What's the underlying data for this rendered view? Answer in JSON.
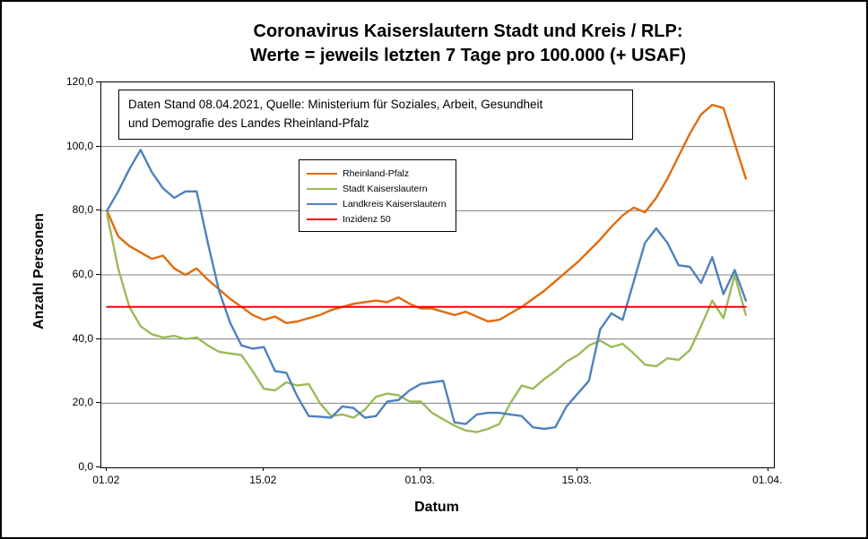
{
  "title": {
    "line1": "Coronavirus Kaiserslautern Stadt und Kreis / RLP:",
    "line2": "Werte = jeweils letzten 7 Tage pro 100.000 (+ USAF)"
  },
  "info_box": {
    "line1": "Daten Stand 08.04.2021, Quelle: Ministerium für Soziales, Arbeit, Gesundheit",
    "line2": "und Demografie des Landes Rheinland-Pfalz"
  },
  "chart_data": {
    "type": "line",
    "title": "Coronavirus Kaiserslautern Stadt und Kreis / RLP: Werte = jeweils letzten 7 Tage pro 100.000 (+ USAF)",
    "xlabel": "Datum",
    "ylabel": "Anzahl Personen",
    "ylim": [
      0,
      120
    ],
    "ytick_step": 20,
    "grid": "horizontal",
    "grid_color": "#808080",
    "legend_position": "upper-left-inside",
    "x_unit": "days since 01.02.2021",
    "x_domain": [
      0,
      59
    ],
    "yticks": [
      {
        "value": 0,
        "label": "0,0"
      },
      {
        "value": 20,
        "label": "20,0"
      },
      {
        "value": 40,
        "label": "40,0"
      },
      {
        "value": 60,
        "label": "60,0"
      },
      {
        "value": 80,
        "label": "80,0"
      },
      {
        "value": 100,
        "label": "100,0"
      },
      {
        "value": 120,
        "label": "120,0"
      }
    ],
    "xticks": [
      {
        "day": 0,
        "label": "01.02"
      },
      {
        "day": 14,
        "label": "15.02"
      },
      {
        "day": 28,
        "label": "01.03."
      },
      {
        "day": 42,
        "label": "15.03."
      },
      {
        "day": 59,
        "label": "01.04."
      }
    ],
    "series": [
      {
        "name": "Rheinland-Pfalz",
        "color": "#E26B0A",
        "stroke_width": 2.4,
        "values": [
          80,
          72,
          69,
          67,
          65,
          66,
          62,
          60,
          62,
          58.5,
          55.5,
          52.5,
          50,
          47.5,
          46,
          47,
          45,
          45.5,
          46.5,
          47.5,
          49,
          50,
          51,
          51.5,
          52,
          51.5,
          53,
          51,
          49.5,
          49.5,
          48.5,
          47.5,
          48.5,
          47,
          45.5,
          46,
          48,
          50,
          52.5,
          55,
          58,
          61,
          64,
          67.5,
          71,
          75,
          78.5,
          81,
          79.5,
          84,
          90,
          97,
          104,
          110,
          113,
          112,
          101,
          90
        ]
      },
      {
        "name": "Stadt Kaiserslautern",
        "color": "#9BBB59",
        "stroke_width": 2.4,
        "values": [
          79,
          62,
          50,
          44,
          41.5,
          40.5,
          41,
          40,
          40.5,
          38,
          36,
          35.5,
          35,
          30,
          24.5,
          24,
          26.5,
          25.5,
          26,
          20,
          16,
          16.5,
          15.5,
          18,
          22,
          23,
          22.5,
          20.5,
          20.5,
          17,
          15,
          13,
          11.5,
          11,
          12,
          13.5,
          20,
          25.5,
          24.5,
          27.5,
          30,
          33,
          35,
          38,
          39.5,
          37.5,
          38.5,
          35.5,
          32,
          31.5,
          34,
          33.5,
          36.5,
          44,
          52,
          46.5,
          60,
          47.5
        ]
      },
      {
        "name": "Landkreis Kaiserslautern",
        "color": "#4F81BD",
        "stroke_width": 2.4,
        "values": [
          80,
          86,
          93,
          99,
          92,
          87,
          84,
          86,
          86,
          70,
          55,
          45,
          38,
          37,
          37.5,
          30,
          29.5,
          22,
          16,
          15.8,
          15.5,
          19,
          18.5,
          15.5,
          16,
          20.5,
          21,
          24,
          26,
          26.5,
          27,
          14,
          13.5,
          16.5,
          17,
          17,
          16.5,
          16,
          12.5,
          12,
          12.5,
          19,
          23,
          27,
          43,
          48,
          46,
          58,
          70,
          74.5,
          70,
          63,
          62.5,
          57.5,
          65.5,
          54,
          61.5,
          52
        ]
      },
      {
        "name": "Inzidenz 50",
        "color": "#FF0000",
        "stroke_width": 2,
        "constant": 50,
        "span_days": 58
      }
    ]
  }
}
